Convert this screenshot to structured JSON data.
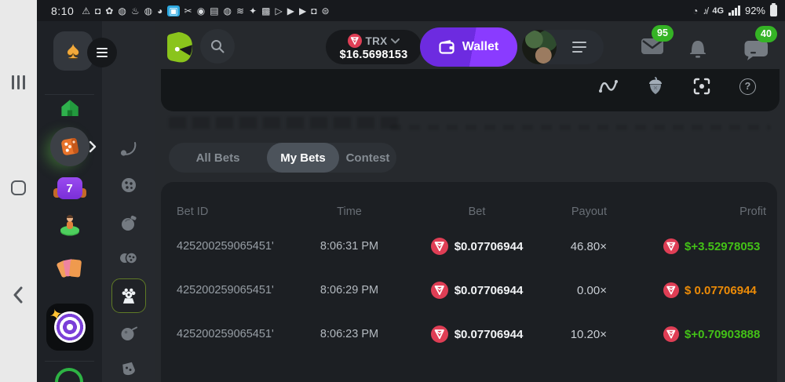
{
  "colors": {
    "green": "#43c117",
    "orange": "#ec8b07",
    "badge_green": "#35b325",
    "wallet_purple": "#7b2ff7",
    "coin_red": "#df3e55",
    "logo_green": "#8ac41c"
  },
  "status_bar": {
    "time": "8:10",
    "left_icons": [
      "⚠",
      "◘",
      "✿",
      "◍",
      "♨",
      "◍",
      "◕",
      "▣",
      "✂",
      "◉",
      "▤",
      "◍",
      "≋",
      "✦",
      "▩",
      "▷",
      "▶",
      "▶",
      "◘",
      "⊜"
    ],
    "highlight_index": 7,
    "alarm_icon": "◔",
    "mute_icon": "♪̸",
    "network_label": "4G",
    "battery_percent": "92%"
  },
  "header": {
    "currency": {
      "code": "TRX",
      "balance": "$16.5698153"
    },
    "wallet_label": "Wallet",
    "mail_badge": "95",
    "chat_badge": "40"
  },
  "sidebar": {
    "slot_seven_label": "7"
  },
  "tabs": [
    {
      "label": "All Bets",
      "active": false
    },
    {
      "label": "My Bets",
      "active": true
    },
    {
      "label": "Contest",
      "active": false
    }
  ],
  "table": {
    "headers": [
      "Bet ID",
      "Time",
      "Bet",
      "Payout",
      "Profit"
    ],
    "rows": [
      {
        "bet_id": "425200259065451'",
        "time": "8:06:31 PM",
        "bet": "$0.07706944",
        "payout": "46.80×",
        "profit": "$+3.52978053",
        "profit_color": "green"
      },
      {
        "bet_id": "425200259065451'",
        "time": "8:06:29 PM",
        "bet": "$0.07706944",
        "payout": "0.00×",
        "profit": "$ 0.07706944",
        "profit_color": "orange"
      },
      {
        "bet_id": "425200259065451'",
        "time": "8:06:23 PM",
        "bet": "$0.07706944",
        "payout": "10.20×",
        "profit": "$+0.70903888",
        "profit_color": "green"
      }
    ]
  }
}
